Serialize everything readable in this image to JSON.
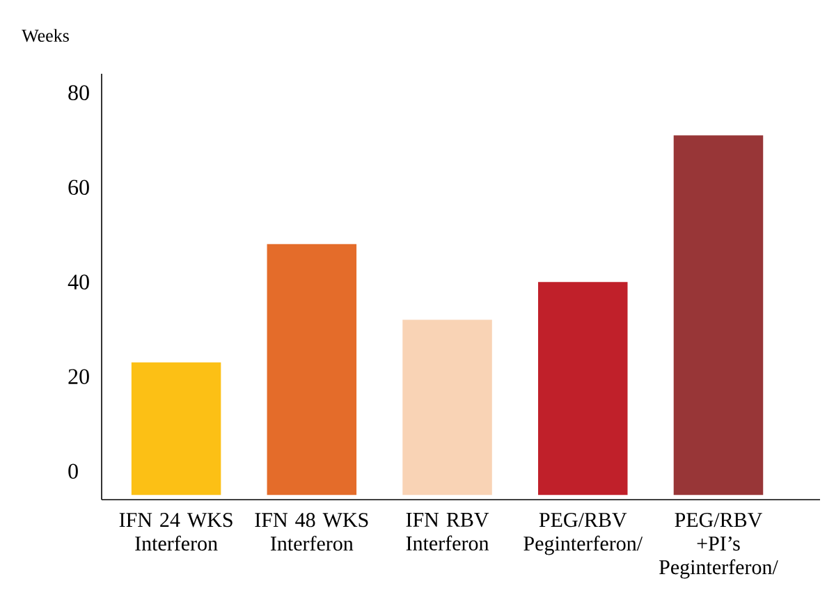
{
  "chart_data": {
    "type": "bar",
    "ylabel": "Weeks",
    "categories": [
      "IFN 24 WKS Interferon",
      "IFN 48 WKS Interferon",
      "IFN RBV Interferon",
      "PEG/RBV Peginterferon/",
      "PEG/RBV +PI’s Peginterferon/"
    ],
    "base": [
      -5,
      -5,
      -5,
      -5,
      -5
    ],
    "values": [
      28,
      53,
      37,
      45,
      76
    ],
    "colors": [
      "#fcc015",
      "#e46c2a",
      "#f9d3b5",
      "#c0202a",
      "#983637"
    ],
    "ylim": [
      -6,
      84
    ],
    "yticks": [
      0,
      20,
      40,
      60,
      80
    ]
  }
}
